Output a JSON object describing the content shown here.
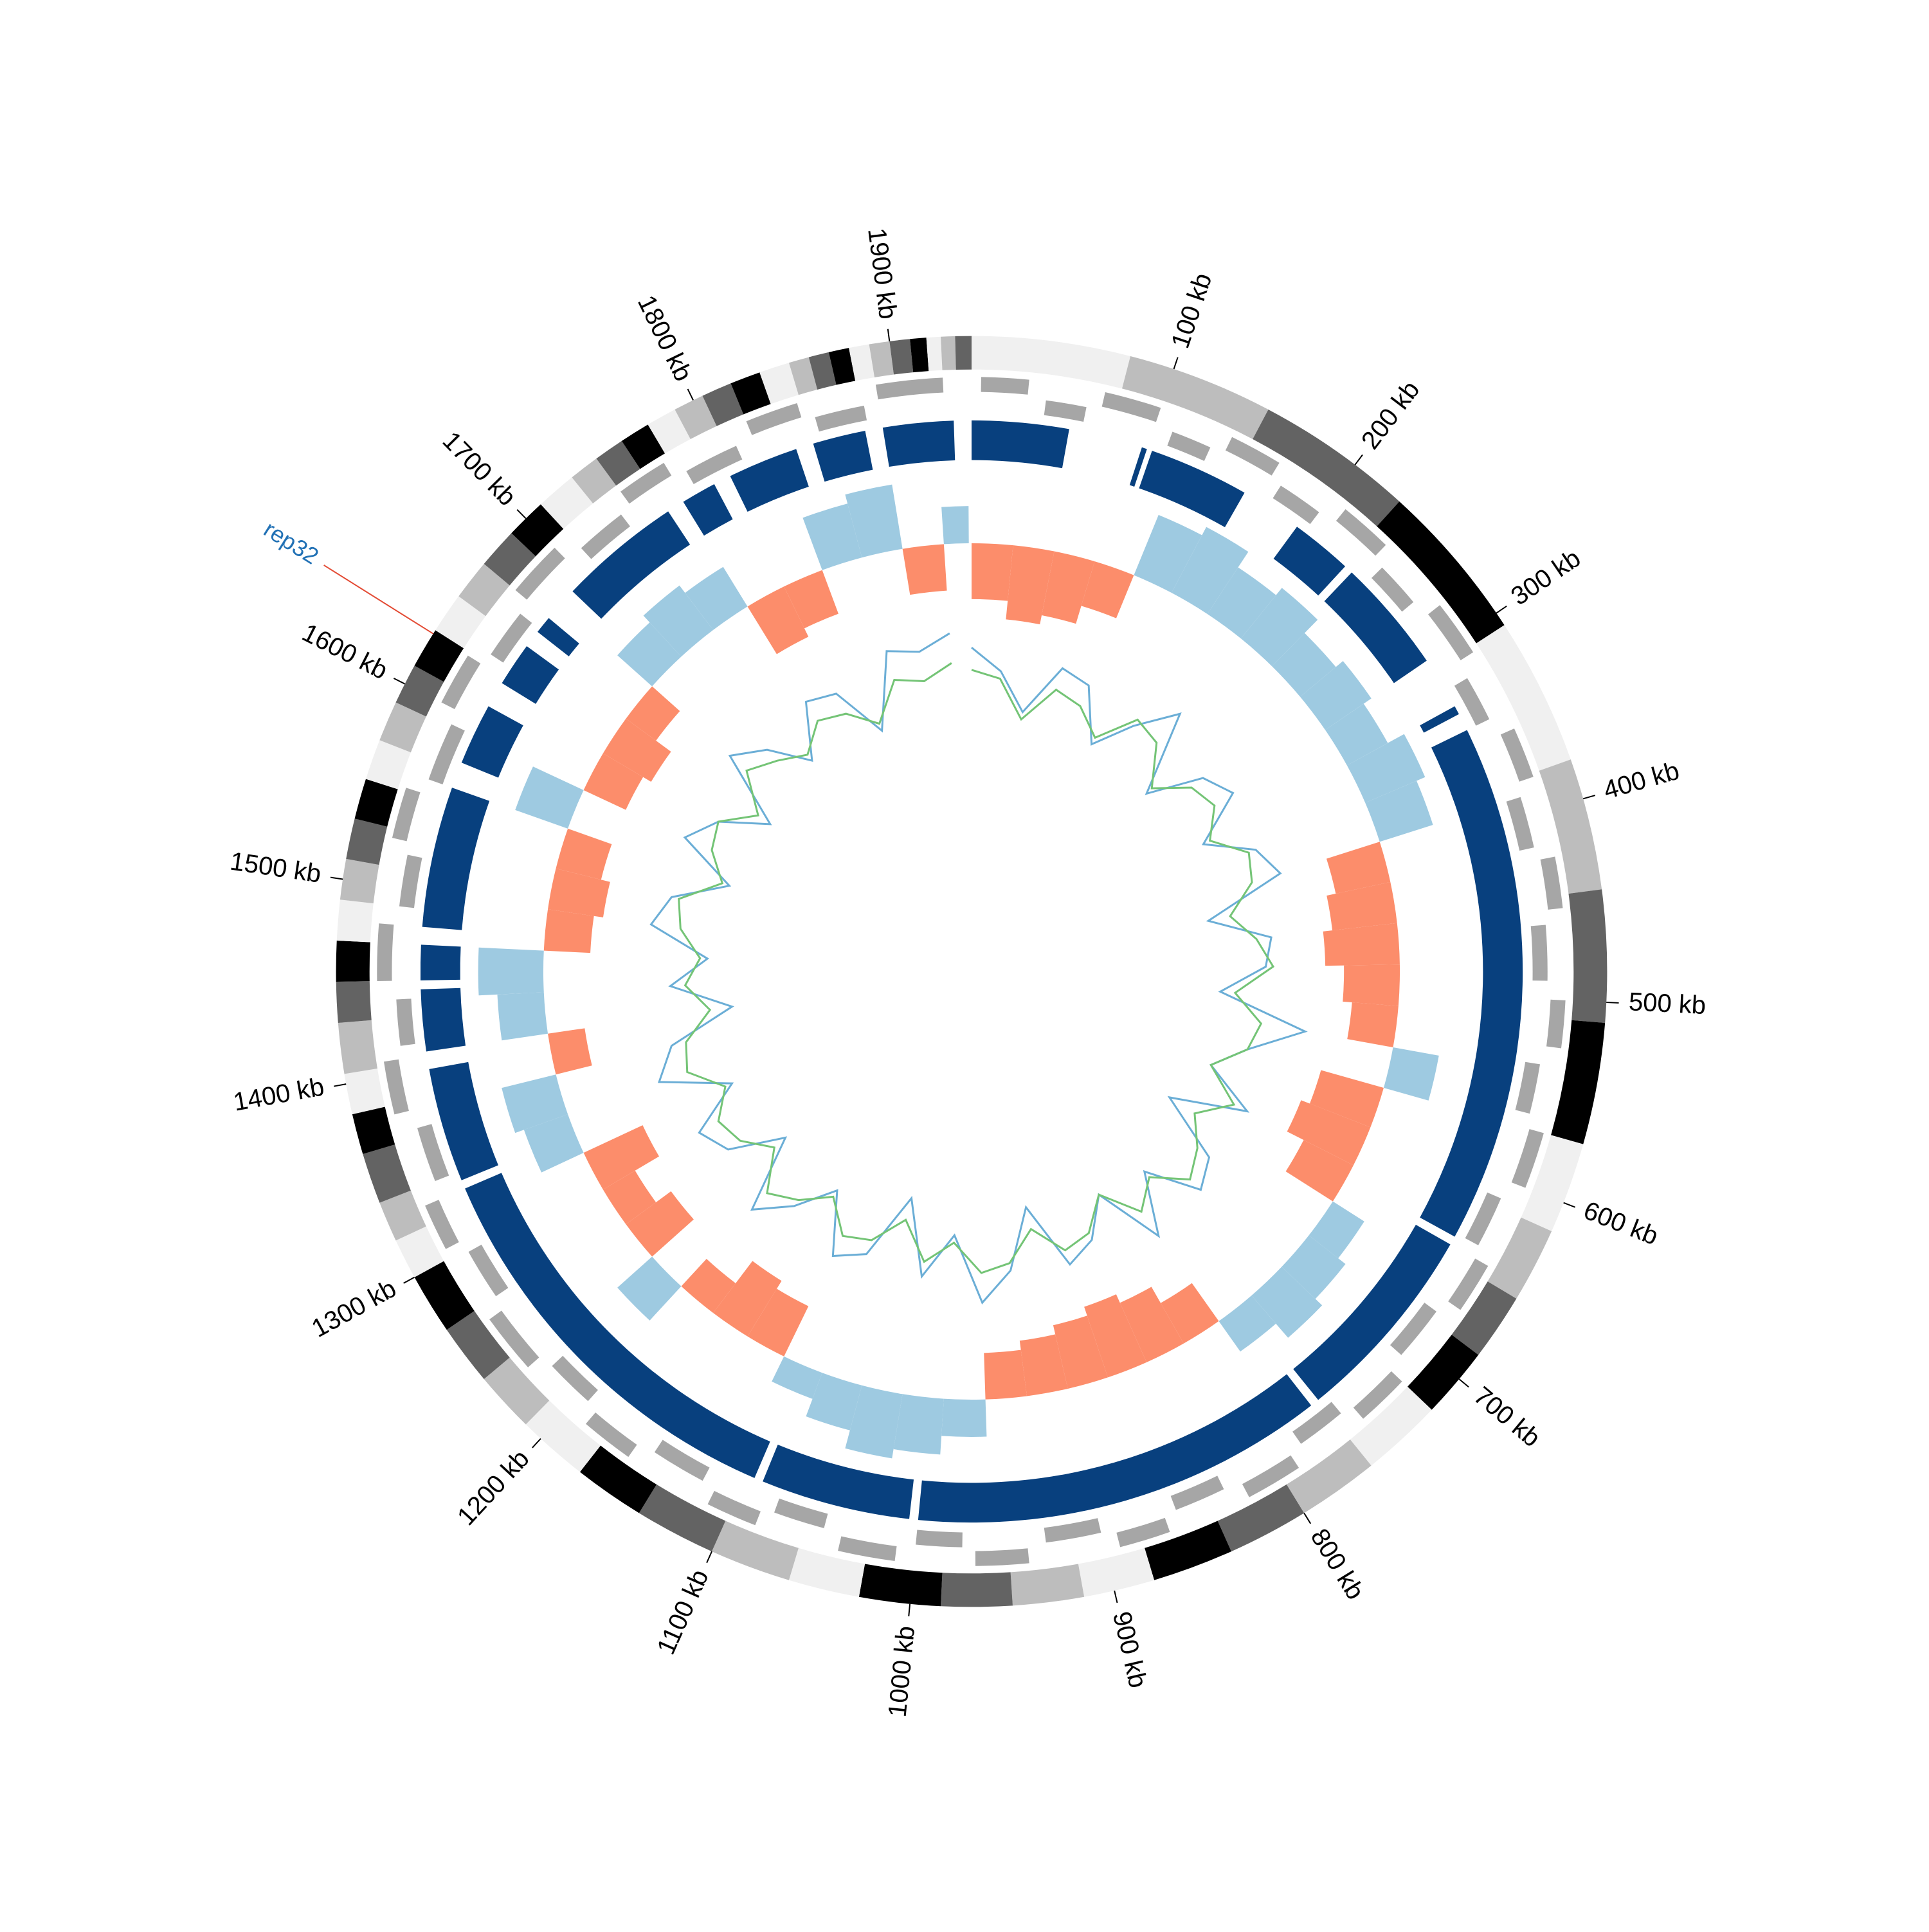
{
  "chart_data": {
    "type": "circos",
    "xlim": [
      0,
      1940
    ],
    "xticks": [
      {
        "value": 100,
        "label": "100 kb"
      },
      {
        "value": 200,
        "label": "200 kb"
      },
      {
        "value": 300,
        "label": "300 kb"
      },
      {
        "value": 400,
        "label": "400 kb"
      },
      {
        "value": 500,
        "label": "500 kb"
      },
      {
        "value": 600,
        "label": "600 kb"
      },
      {
        "value": 700,
        "label": "700 kb"
      },
      {
        "value": 800,
        "label": "800 kb"
      },
      {
        "value": 900,
        "label": "900 kb"
      },
      {
        "value": 1000,
        "label": "1000 kb"
      },
      {
        "value": 1100,
        "label": "1100 kb"
      },
      {
        "value": 1200,
        "label": "1200 kb"
      },
      {
        "value": 1300,
        "label": "1300 kb"
      },
      {
        "value": 1400,
        "label": "1400 kb"
      },
      {
        "value": 1500,
        "label": "1500 kb"
      },
      {
        "value": 1600,
        "label": "1600 kb"
      },
      {
        "value": 1700,
        "label": "1700 kb"
      },
      {
        "value": 1800,
        "label": "1800 kb"
      },
      {
        "value": 1900,
        "label": "1900 kb"
      }
    ],
    "bands": {
      "colors": [
        "#f0f0f0",
        "#bdbdbd",
        "#636363",
        "#000000"
      ],
      "starts": [
        0,
        78,
        150,
        228,
        307,
        380,
        445,
        510,
        570,
        615,
        652,
        685,
        720,
        760,
        800,
        840,
        880,
        915,
        950,
        985,
        1025,
        1060,
        1100,
        1140,
        1175,
        1210,
        1240,
        1270,
        1300,
        1320,
        1340,
        1365,
        1385,
        1405,
        1430,
        1450,
        1470,
        1490,
        1510,
        1530,
        1550,
        1570,
        1590,
        1610,
        1630,
        1650,
        1670,
        1690,
        1710,
        1730,
        1745,
        1760,
        1775,
        1790,
        1805,
        1820,
        1835,
        1850,
        1860,
        1870,
        1880,
        1890,
        1900,
        1910,
        1918,
        1925,
        1932
      ]
    },
    "genes": {
      "color": "#a6a6a6",
      "starts": [
        5,
        40,
        70,
        110,
        140,
        175,
        210,
        245,
        280,
        320,
        355,
        390,
        425,
        460,
        500,
        535,
        570,
        610,
        645,
        680,
        720,
        755,
        790,
        830,
        865,
        900,
        940,
        975,
        1010,
        1050,
        1085,
        1120,
        1160,
        1195,
        1230,
        1270,
        1305,
        1340,
        1380,
        1415,
        1450,
        1490,
        1525,
        1560,
        1600,
        1635,
        1670,
        1710,
        1745,
        1780,
        1820,
        1855,
        1890
      ],
      "ends": [
        30,
        62,
        100,
        132,
        168,
        200,
        238,
        270,
        310,
        345,
        382,
        418,
        452,
        490,
        525,
        562,
        600,
        638,
        672,
        710,
        748,
        782,
        820,
        858,
        892,
        930,
        968,
        1000,
        1040,
        1078,
        1112,
        1150,
        1188,
        1222,
        1262,
        1298,
        1330,
        1370,
        1408,
        1440,
        1480,
        1518,
        1552,
        1592,
        1628,
        1662,
        1700,
        1738,
        1772,
        1810,
        1848,
        1882,
        1925
      ]
    },
    "regions": {
      "color": "#08407e",
      "starts": [
        0,
        97,
        103,
        195,
        235,
        330,
        345,
        645,
        765,
        1005,
        1095,
        1335,
        1410,
        1450,
        1480,
        1575,
        1625,
        1660,
        1690,
        1770,
        1800,
        1850,
        1890
      ],
      "ends": [
        55,
        100,
        160,
        230,
        300,
        335,
        640,
        760,
        1000,
        1090,
        1330,
        1400,
        1445,
        1470,
        1560,
        1610,
        1650,
        1670,
        1760,
        1790,
        1840,
        1880,
        1930
      ]
    },
    "skew": {
      "positive_color": "#9ecae1",
      "negative_color": "#fc8d6b",
      "ylim": [
        -1,
        1
      ],
      "x": [
        0,
        30,
        60,
        90,
        120,
        150,
        180,
        210,
        240,
        270,
        300,
        330,
        360,
        390,
        420,
        450,
        480,
        510,
        540,
        570,
        600,
        630,
        660,
        690,
        720,
        750,
        780,
        810,
        840,
        870,
        900,
        930,
        960,
        990,
        1020,
        1050,
        1080,
        1110,
        1140,
        1170,
        1200,
        1230,
        1260,
        1290,
        1320,
        1350,
        1380,
        1410,
        1440,
        1470,
        1500,
        1530,
        1560,
        1590,
        1620,
        1650,
        1680,
        1710,
        1740,
        1770,
        1800,
        1830,
        1860,
        1890,
        1920
      ],
      "values": [
        -0.6,
        -0.8,
        -0.7,
        -0.5,
        0.7,
        0.8,
        0.6,
        0.7,
        0.5,
        0.6,
        0.5,
        0.7,
        0.6,
        -0.6,
        -0.7,
        -0.8,
        -0.6,
        -0.5,
        0.5,
        -0.7,
        -0.8,
        -0.6,
        0.4,
        0.5,
        0.6,
        0.4,
        -0.5,
        -0.7,
        -0.8,
        -0.7,
        -0.6,
        -0.5,
        0.4,
        0.6,
        0.7,
        0.5,
        0.3,
        -0.6,
        -0.7,
        -0.4,
        0.5,
        -0.6,
        -0.4,
        -0.7,
        0.5,
        0.6,
        -0.4,
        0.5,
        0.7,
        -0.5,
        -0.6,
        -0.5,
        0.6,
        -0.5,
        -0.6,
        -0.4,
        0.5,
        0.6,
        0.5,
        -0.6,
        -0.5,
        0.6,
        0.7,
        -0.5,
        0.4
      ]
    },
    "gc": {
      "ylim": [
        -1,
        1
      ],
      "x": [
        0,
        30,
        60,
        90,
        120,
        150,
        180,
        210,
        240,
        270,
        300,
        330,
        360,
        390,
        420,
        450,
        480,
        510,
        540,
        570,
        600,
        630,
        660,
        690,
        720,
        750,
        780,
        810,
        840,
        870,
        900,
        930,
        960,
        990,
        1020,
        1050,
        1080,
        1110,
        1140,
        1170,
        1200,
        1230,
        1260,
        1290,
        1320,
        1350,
        1380,
        1410,
        1440,
        1470,
        1500,
        1530,
        1560,
        1590,
        1620,
        1650,
        1680,
        1710,
        1740,
        1770,
        1800,
        1830,
        1860,
        1890,
        1920
      ],
      "series": [
        {
          "color": "#6baed6",
          "values": [
            0.6,
            0.3,
            -0.2,
            0.5,
            0.4,
            -0.3,
            0.2,
            0.7,
            -0.4,
            0.3,
            0.5,
            -0.2,
            0.4,
            0.6,
            -0.5,
            0.3,
            0.2,
            -0.4,
            0.8,
            0.1,
            -0.3,
            0.4,
            -0.6,
            0.3,
            0.5,
            -0.2,
            0.6,
            -0.3,
            0.2,
            0.4,
            -0.5,
            0.3,
            0.7,
            -0.2,
            0.4,
            -0.6,
            0.3,
            0.5,
            -0.3,
            0.2,
            0.6,
            -0.4,
            0.3,
            0.5,
            -0.2,
            0.7,
            0.4,
            -0.5,
            0.3,
            -0.2,
            0.6,
            0.4,
            -0.3,
            0.5,
            0.2,
            -0.4,
            0.6,
            0.3,
            -0.2,
            0.5,
            0.4,
            -0.3,
            0.7,
            0.6,
            0.8
          ]
        },
        {
          "color": "#74c476",
          "values": [
            0.3,
            0.2,
            -0.3,
            0.2,
            0.1,
            -0.2,
            0.3,
            0.2,
            -0.3,
            0.1,
            0.2,
            -0.1,
            0.3,
            0.2,
            -0.2,
            0.1,
            0.3,
            -0.2,
            0.2,
            0.1,
            -0.3,
            0.2,
            -0.2,
            0.1,
            0.3,
            -0.1,
            0.2,
            -0.3,
            0.1,
            0.2,
            -0.2,
            0.2,
            0.3,
            -0.1,
            0.2,
            -0.3,
            0.1,
            0.2,
            -0.2,
            0.1,
            0.3,
            -0.2,
            0.1,
            0.2,
            -0.1,
            0.3,
            0.2,
            -0.2,
            0.1,
            -0.1,
            0.2,
            0.3,
            -0.2,
            0.1,
            0.2,
            -0.2,
            0.3,
            0.1,
            -0.1,
            0.2,
            0.1,
            -0.2,
            0.3,
            0.2,
            0.4
          ]
        }
      ]
    },
    "annotations": [
      {
        "text": "rep32",
        "x": 1628,
        "color": "#2171b5",
        "line_color": "#e34a33"
      }
    ]
  }
}
